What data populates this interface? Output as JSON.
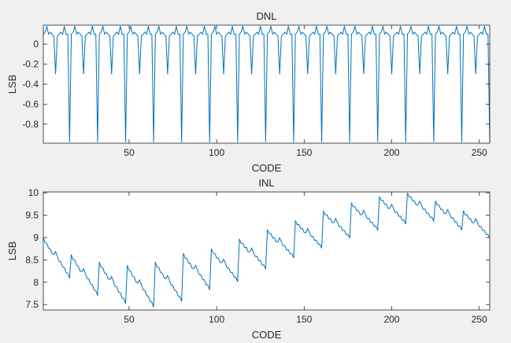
{
  "figure": {
    "background": "#f0f0f0",
    "axes_background": "#ffffff",
    "line_color": "#0072bd",
    "axis_color": "#262626"
  },
  "chart_data": [
    {
      "type": "line",
      "title": "DNL",
      "xlabel": "CODE",
      "ylabel": "LSB",
      "xlim": [
        1,
        256
      ],
      "ylim": [
        -0.99,
        0.19
      ],
      "xticks": [
        50,
        100,
        150,
        200,
        250
      ],
      "yticks": [
        0,
        -0.2,
        -0.4,
        -0.6,
        -0.8
      ],
      "ytick_labels": [
        "0",
        "-0.2",
        "-0.4",
        "-0.6",
        "-0.8"
      ],
      "grid": false,
      "pattern": {
        "period": 16,
        "offset": 1,
        "profile": [
          0.1,
          0.12,
          0.18,
          0.1,
          0.12,
          0.1,
          0.08,
          -0.3,
          0.08,
          0.1,
          0.12,
          0.1,
          0.18,
          0.1,
          0.1,
          -0.98
        ]
      },
      "series": [
        {
          "name": "",
          "color": "#0072bd"
        }
      ]
    },
    {
      "type": "line",
      "title": "INL",
      "xlabel": "CODE",
      "ylabel": "LSB",
      "xlim": [
        1,
        256
      ],
      "ylim": [
        7.38,
        10.02
      ],
      "xticks": [
        50,
        100,
        150,
        200,
        250
      ],
      "yticks": [
        7.5,
        8,
        8.5,
        9,
        9.5,
        10
      ],
      "ytick_labels": [
        "7.5",
        "8",
        "8.5",
        "9",
        "9.5",
        "10"
      ],
      "grid": false,
      "pattern": {
        "period": 16,
        "offset": 1,
        "block_peaks": [
          9.0,
          8.62,
          8.45,
          8.38,
          8.45,
          8.65,
          8.75,
          8.97,
          9.18,
          9.38,
          9.6,
          9.78,
          9.92,
          10.0,
          9.82,
          9.6
        ],
        "block_drops": [
          0.95,
          0.96,
          0.97,
          0.98,
          0.92,
          0.86,
          0.78,
          0.72,
          0.68,
          0.66,
          0.66,
          0.66,
          0.66,
          0.68,
          0.7,
          0.66
        ],
        "inner_step": -0.05,
        "kink_index": 7,
        "kink_jump": 0.18
      },
      "series": [
        {
          "name": "",
          "color": "#0072bd"
        }
      ]
    }
  ]
}
